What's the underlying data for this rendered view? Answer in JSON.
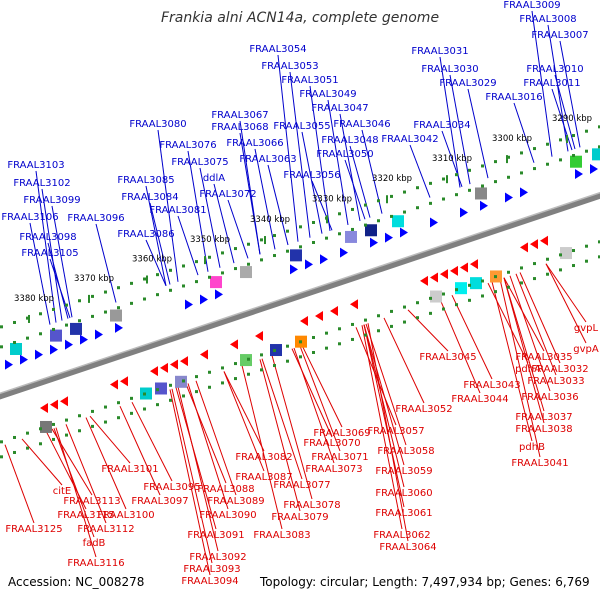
{
  "title": "Frankia alni ACN14a, complete genome",
  "footer": {
    "accession": "Accession: NC_008278",
    "summary": "Topology: circular; Length: 7,497,934 bp; Genes: 6,769"
  },
  "colors": {
    "forward_label": "#0000cc",
    "reverse_label": "#dd0000",
    "forward_gene": "#0000ff",
    "reverse_gene": "#ff0000",
    "backbone": "#808080",
    "tick": "#2a8a2a"
  },
  "scale_ticks": [
    "3290 kbp",
    "3300 kbp",
    "3310 kbp",
    "3320 kbp",
    "3330 kbp",
    "3340 kbp",
    "3350 kbp",
    "3360 kbp",
    "3370 kbp",
    "3380 kbp"
  ],
  "forward_labels": [
    "FRAAL3009",
    "FRAAL3008",
    "FRAAL3007",
    "FRAAL3010",
    "FRAAL3011",
    "FRAAL3016",
    "FRAAL3031",
    "FRAAL3030",
    "FRAAL3029",
    "FRAAL3034",
    "FRAAL3042",
    "FRAAL3054",
    "FRAAL3053",
    "FRAAL3051",
    "FRAAL3049",
    "FRAAL3047",
    "FRAAL3046",
    "FRAAL3048",
    "FRAAL3050",
    "FRAAL3055",
    "FRAAL3056",
    "FRAAL3067",
    "FRAAL3068",
    "FRAAL3066",
    "FRAAL3063",
    "FRAAL3080",
    "FRAAL3076",
    "FRAAL3075",
    "ddlA",
    "FRAAL3072",
    "FRAAL3085",
    "FRAAL3084",
    "FRAAL3081",
    "FRAAL3086",
    "FRAAL3103",
    "FRAAL3102",
    "FRAAL3099",
    "FRAAL3106",
    "FRAAL3096",
    "FRAAL3098",
    "FRAAL3105"
  ],
  "reverse_labels": [
    "gvpL",
    "gvpA",
    "FRAAL3045",
    "FRAAL3035",
    "pdhA",
    "FRAAL3032",
    "FRAAL3043",
    "FRAAL3033",
    "FRAAL3044",
    "FRAAL3036",
    "FRAAL3037",
    "FRAAL3038",
    "pdhB",
    "FRAAL3041",
    "FRAAL3052",
    "FRAAL3069",
    "FRAAL3057",
    "FRAAL3070",
    "FRAAL3058",
    "FRAAL3071",
    "FRAAL3073",
    "FRAAL3059",
    "FRAAL3082",
    "FRAAL3060",
    "FRAAL3087",
    "FRAAL3077",
    "FRAAL3088",
    "FRAAL3061",
    "FRAAL3101",
    "FRAAL3095",
    "FRAAL3089",
    "FRAAL3078",
    "FRAAL3097",
    "FRAAL3090",
    "FRAAL3079",
    "FRAAL3100",
    "FRAAL3062",
    "FRAAL3064",
    "FRAAL3083",
    "citE",
    "FRAAL3113",
    "FRAAL3115",
    "FRAAL3112",
    "FRAAL3091",
    "fadB",
    "FRAAL3092",
    "FRAAL3093",
    "FRAAL3094",
    "FRAAL3125",
    "FRAAL3116"
  ]
}
